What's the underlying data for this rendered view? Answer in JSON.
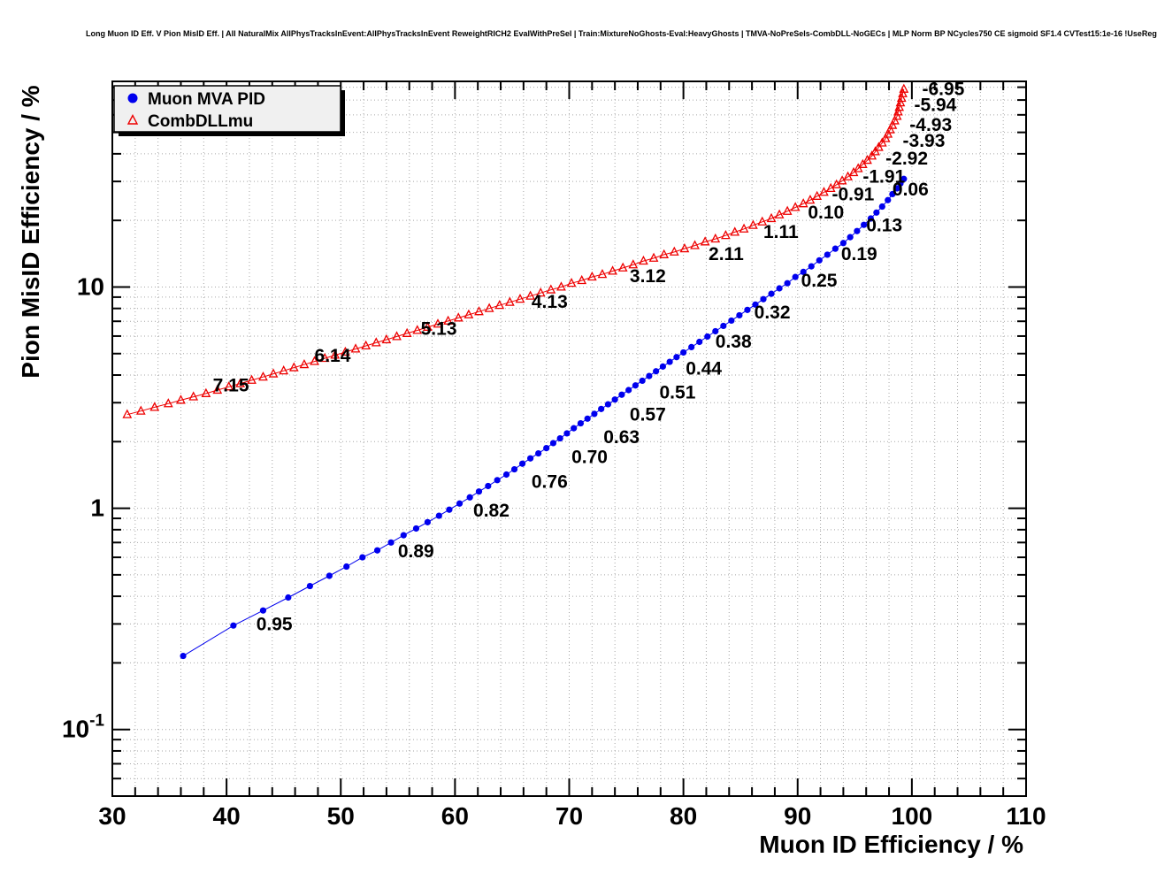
{
  "title": "Long Muon ID Eff. V Pion MisID Eff. | All NaturalMix AllPhysTracksInEvent:AllPhysTracksInEvent ReweightRICH2 EvalWithPreSel | Train:MixtureNoGhosts-Eval:HeavyGhosts | TMVA-NoPreSels-CombDLL-NoGECs | MLP Norm BP NCycles750 CE sigmoid SF1.4 CVTest15:1e-16 !UseReg",
  "chart_data": {
    "type": "scatter",
    "title": "Long Muon ID Eff. V Pion MisID Eff.",
    "xlabel": "Muon ID Efficiency / %",
    "ylabel": "Pion MisID Efficiency / %",
    "xlim": [
      30,
      110
    ],
    "ylim": [
      0.05,
      85
    ],
    "y_scale": "log",
    "grid": "dotted",
    "x_ticks": [
      30,
      40,
      50,
      60,
      70,
      80,
      90,
      100,
      110
    ],
    "x_tick_labels": [
      "30",
      "40",
      "50",
      "60",
      "70",
      "80",
      "90",
      "100",
      "110"
    ],
    "x_minor_step": 2,
    "y_major_ticks": [
      {
        "v": 0.1,
        "base": "10",
        "exp": "-1"
      },
      {
        "v": 1,
        "base": "1",
        "exp": ""
      },
      {
        "v": 10,
        "base": "10",
        "exp": ""
      }
    ],
    "colors": {
      "blue": "#0000ee",
      "red": "#ee0000",
      "grid": "#a6a6a6",
      "frame": "#000000",
      "legend_bg": "#f0f0f0",
      "legend_shadow": "#000000"
    },
    "legend": {
      "position": "top-left",
      "entries": [
        {
          "label": "Muon MVA PID",
          "color": "#0000ee",
          "marker": "circle"
        },
        {
          "label": "CombDLLmu",
          "color": "#ee0000",
          "marker": "triangle-open"
        }
      ]
    },
    "series": [
      {
        "id": "muon-mva-pid",
        "name": "Muon MVA PID",
        "color": "#0000ee",
        "marker": "circle",
        "points": [
          [
            36.2,
            0.215
          ],
          [
            40.6,
            0.295
          ],
          [
            43.2,
            0.345
          ],
          [
            45.4,
            0.395
          ],
          [
            47.3,
            0.445
          ],
          [
            49.0,
            0.495
          ],
          [
            50.5,
            0.545
          ],
          [
            51.9,
            0.6
          ],
          [
            53.2,
            0.645
          ],
          [
            54.4,
            0.7
          ],
          [
            55.5,
            0.755
          ],
          [
            56.6,
            0.81
          ],
          [
            57.6,
            0.865
          ],
          [
            58.6,
            0.925
          ],
          [
            59.5,
            0.985
          ],
          [
            60.4,
            1.05
          ],
          [
            61.3,
            1.12
          ],
          [
            62.1,
            1.19
          ],
          [
            62.9,
            1.26
          ],
          [
            63.7,
            1.34
          ],
          [
            64.5,
            1.42
          ],
          [
            65.2,
            1.5
          ],
          [
            65.9,
            1.59
          ],
          [
            66.6,
            1.68
          ],
          [
            67.3,
            1.77
          ],
          [
            68.0,
            1.87
          ],
          [
            68.6,
            1.97
          ],
          [
            69.2,
            2.07
          ],
          [
            69.8,
            2.18
          ],
          [
            70.4,
            2.3
          ],
          [
            71.0,
            2.42
          ],
          [
            71.6,
            2.54
          ],
          [
            72.2,
            2.67
          ],
          [
            72.8,
            2.81
          ],
          [
            73.4,
            2.95
          ],
          [
            74.0,
            3.1
          ],
          [
            74.6,
            3.26
          ],
          [
            75.2,
            3.42
          ],
          [
            75.8,
            3.59
          ],
          [
            76.4,
            3.77
          ],
          [
            77.0,
            3.96
          ],
          [
            77.6,
            4.16
          ],
          [
            78.2,
            4.37
          ],
          [
            78.8,
            4.59
          ],
          [
            79.4,
            4.82
          ],
          [
            80.0,
            5.06
          ],
          [
            80.7,
            5.35
          ],
          [
            81.4,
            5.65
          ],
          [
            82.1,
            5.97
          ],
          [
            82.8,
            6.31
          ],
          [
            83.5,
            6.67
          ],
          [
            84.2,
            7.05
          ],
          [
            84.9,
            7.45
          ],
          [
            85.6,
            7.88
          ],
          [
            86.3,
            8.33
          ],
          [
            87.0,
            8.81
          ],
          [
            87.7,
            9.32
          ],
          [
            88.4,
            9.86
          ],
          [
            89.1,
            10.4
          ],
          [
            89.8,
            11.1
          ],
          [
            90.5,
            11.7
          ],
          [
            91.2,
            12.4
          ],
          [
            91.9,
            13.2
          ],
          [
            92.6,
            14.0
          ],
          [
            93.3,
            14.9
          ],
          [
            94.0,
            15.8
          ],
          [
            94.6,
            16.8
          ],
          [
            95.2,
            17.9
          ],
          [
            95.8,
            19.1
          ],
          [
            96.4,
            20.4
          ],
          [
            96.9,
            21.7
          ],
          [
            97.4,
            23.1
          ],
          [
            97.9,
            24.7
          ],
          [
            98.3,
            26.3
          ],
          [
            98.7,
            27.9
          ],
          [
            99.0,
            29.4
          ],
          [
            99.3,
            30.8
          ]
        ],
        "value_labels": [
          {
            "text": "0.95",
            "x": 42.6,
            "y": 0.3
          },
          {
            "text": "0.89",
            "x": 55.0,
            "y": 0.64
          },
          {
            "text": "0.82",
            "x": 61.6,
            "y": 0.98
          },
          {
            "text": "0.76",
            "x": 66.7,
            "y": 1.32
          },
          {
            "text": "0.70",
            "x": 70.2,
            "y": 1.71
          },
          {
            "text": "0.63",
            "x": 73.0,
            "y": 2.1
          },
          {
            "text": "0.57",
            "x": 75.3,
            "y": 2.65
          },
          {
            "text": "0.51",
            "x": 77.9,
            "y": 3.35
          },
          {
            "text": "0.44",
            "x": 80.2,
            "y": 4.29
          },
          {
            "text": "0.38",
            "x": 82.8,
            "y": 5.67
          },
          {
            "text": "0.32",
            "x": 86.2,
            "y": 7.7
          },
          {
            "text": "0.25",
            "x": 90.3,
            "y": 10.7
          },
          {
            "text": "0.19",
            "x": 93.8,
            "y": 14.1
          },
          {
            "text": "0.13",
            "x": 96.0,
            "y": 19.0
          },
          {
            "text": "0.06",
            "x": 98.3,
            "y": 27.7
          }
        ]
      },
      {
        "id": "combdllmu",
        "name": "CombDLLmu",
        "color": "#ee0000",
        "marker": "triangle-open",
        "points": [
          [
            31.3,
            2.65
          ],
          [
            32.5,
            2.75
          ],
          [
            33.7,
            2.86
          ],
          [
            34.9,
            2.97
          ],
          [
            36.0,
            3.08
          ],
          [
            37.1,
            3.19
          ],
          [
            38.2,
            3.3
          ],
          [
            39.2,
            3.42
          ],
          [
            40.2,
            3.54
          ],
          [
            41.2,
            3.66
          ],
          [
            42.2,
            3.79
          ],
          [
            43.2,
            3.92
          ],
          [
            44.1,
            4.05
          ],
          [
            45.0,
            4.18
          ],
          [
            45.9,
            4.32
          ],
          [
            46.8,
            4.46
          ],
          [
            47.7,
            4.61
          ],
          [
            48.6,
            4.76
          ],
          [
            49.5,
            4.92
          ],
          [
            50.4,
            5.08
          ],
          [
            51.3,
            5.25
          ],
          [
            52.2,
            5.42
          ],
          [
            53.1,
            5.6
          ],
          [
            54.0,
            5.78
          ],
          [
            54.9,
            5.97
          ],
          [
            55.8,
            6.17
          ],
          [
            56.7,
            6.37
          ],
          [
            57.6,
            6.58
          ],
          [
            58.5,
            6.8
          ],
          [
            59.4,
            7.02
          ],
          [
            60.3,
            7.25
          ],
          [
            61.2,
            7.49
          ],
          [
            62.1,
            7.74
          ],
          [
            63.0,
            8.0
          ],
          [
            63.9,
            8.26
          ],
          [
            64.8,
            8.53
          ],
          [
            65.7,
            8.81
          ],
          [
            66.6,
            9.1
          ],
          [
            67.5,
            9.4
          ],
          [
            68.4,
            9.71
          ],
          [
            69.3,
            10.0
          ],
          [
            70.2,
            10.4
          ],
          [
            71.1,
            10.7
          ],
          [
            72.0,
            11.1
          ],
          [
            72.9,
            11.4
          ],
          [
            73.8,
            11.8
          ],
          [
            74.7,
            12.2
          ],
          [
            75.6,
            12.6
          ],
          [
            76.5,
            13.1
          ],
          [
            77.4,
            13.5
          ],
          [
            78.3,
            14.0
          ],
          [
            79.2,
            14.4
          ],
          [
            80.1,
            14.9
          ],
          [
            81.0,
            15.4
          ],
          [
            81.9,
            16.0
          ],
          [
            82.8,
            16.5
          ],
          [
            83.7,
            17.1
          ],
          [
            84.5,
            17.7
          ],
          [
            85.3,
            18.3
          ],
          [
            86.1,
            19.0
          ],
          [
            86.9,
            19.7
          ],
          [
            87.7,
            20.4
          ],
          [
            88.4,
            21.2
          ],
          [
            89.1,
            22.0
          ],
          [
            89.8,
            22.9
          ],
          [
            90.5,
            23.8
          ],
          [
            91.1,
            24.7
          ],
          [
            91.7,
            25.7
          ],
          [
            92.3,
            26.8
          ],
          [
            92.9,
            27.9
          ],
          [
            93.4,
            29.0
          ],
          [
            93.9,
            30.2
          ],
          [
            94.4,
            31.5
          ],
          [
            94.9,
            32.9
          ],
          [
            95.3,
            34.3
          ],
          [
            95.7,
            35.8
          ],
          [
            96.1,
            37.4
          ],
          [
            96.5,
            39.1
          ],
          [
            96.8,
            40.9
          ],
          [
            97.1,
            42.8
          ],
          [
            97.4,
            44.8
          ],
          [
            97.7,
            46.9
          ],
          [
            97.9,
            49.1
          ],
          [
            98.1,
            51.4
          ],
          [
            98.3,
            53.8
          ],
          [
            98.5,
            56.4
          ],
          [
            98.7,
            59.1
          ],
          [
            98.8,
            61.9
          ],
          [
            98.9,
            64.9
          ],
          [
            99.0,
            68.0
          ],
          [
            99.1,
            71.3
          ],
          [
            99.2,
            74.8
          ],
          [
            99.3,
            78.4
          ]
        ],
        "value_labels": [
          {
            "text": "7.15",
            "x": 38.8,
            "y": 3.6
          },
          {
            "text": "6.14",
            "x": 47.7,
            "y": 4.9
          },
          {
            "text": "5.13",
            "x": 57.0,
            "y": 6.5
          },
          {
            "text": "4.13",
            "x": 66.7,
            "y": 8.6
          },
          {
            "text": "3.12",
            "x": 75.3,
            "y": 11.2
          },
          {
            "text": "2.11",
            "x": 82.2,
            "y": 14.1
          },
          {
            "text": "1.11",
            "x": 87.0,
            "y": 17.8
          },
          {
            "text": "0.10",
            "x": 90.9,
            "y": 21.8
          },
          {
            "text": "-0.91",
            "x": 93.0,
            "y": 26.3
          },
          {
            "text": "-1.91",
            "x": 95.7,
            "y": 31.6
          },
          {
            "text": "-2.92",
            "x": 97.7,
            "y": 38.1
          },
          {
            "text": "-3.93",
            "x": 99.2,
            "y": 45.8
          },
          {
            "text": "-4.93",
            "x": 99.8,
            "y": 54.2
          },
          {
            "text": "-5.94",
            "x": 100.2,
            "y": 66.5
          },
          {
            "text": "-6.95",
            "x": 100.9,
            "y": 78.5
          }
        ]
      }
    ]
  }
}
